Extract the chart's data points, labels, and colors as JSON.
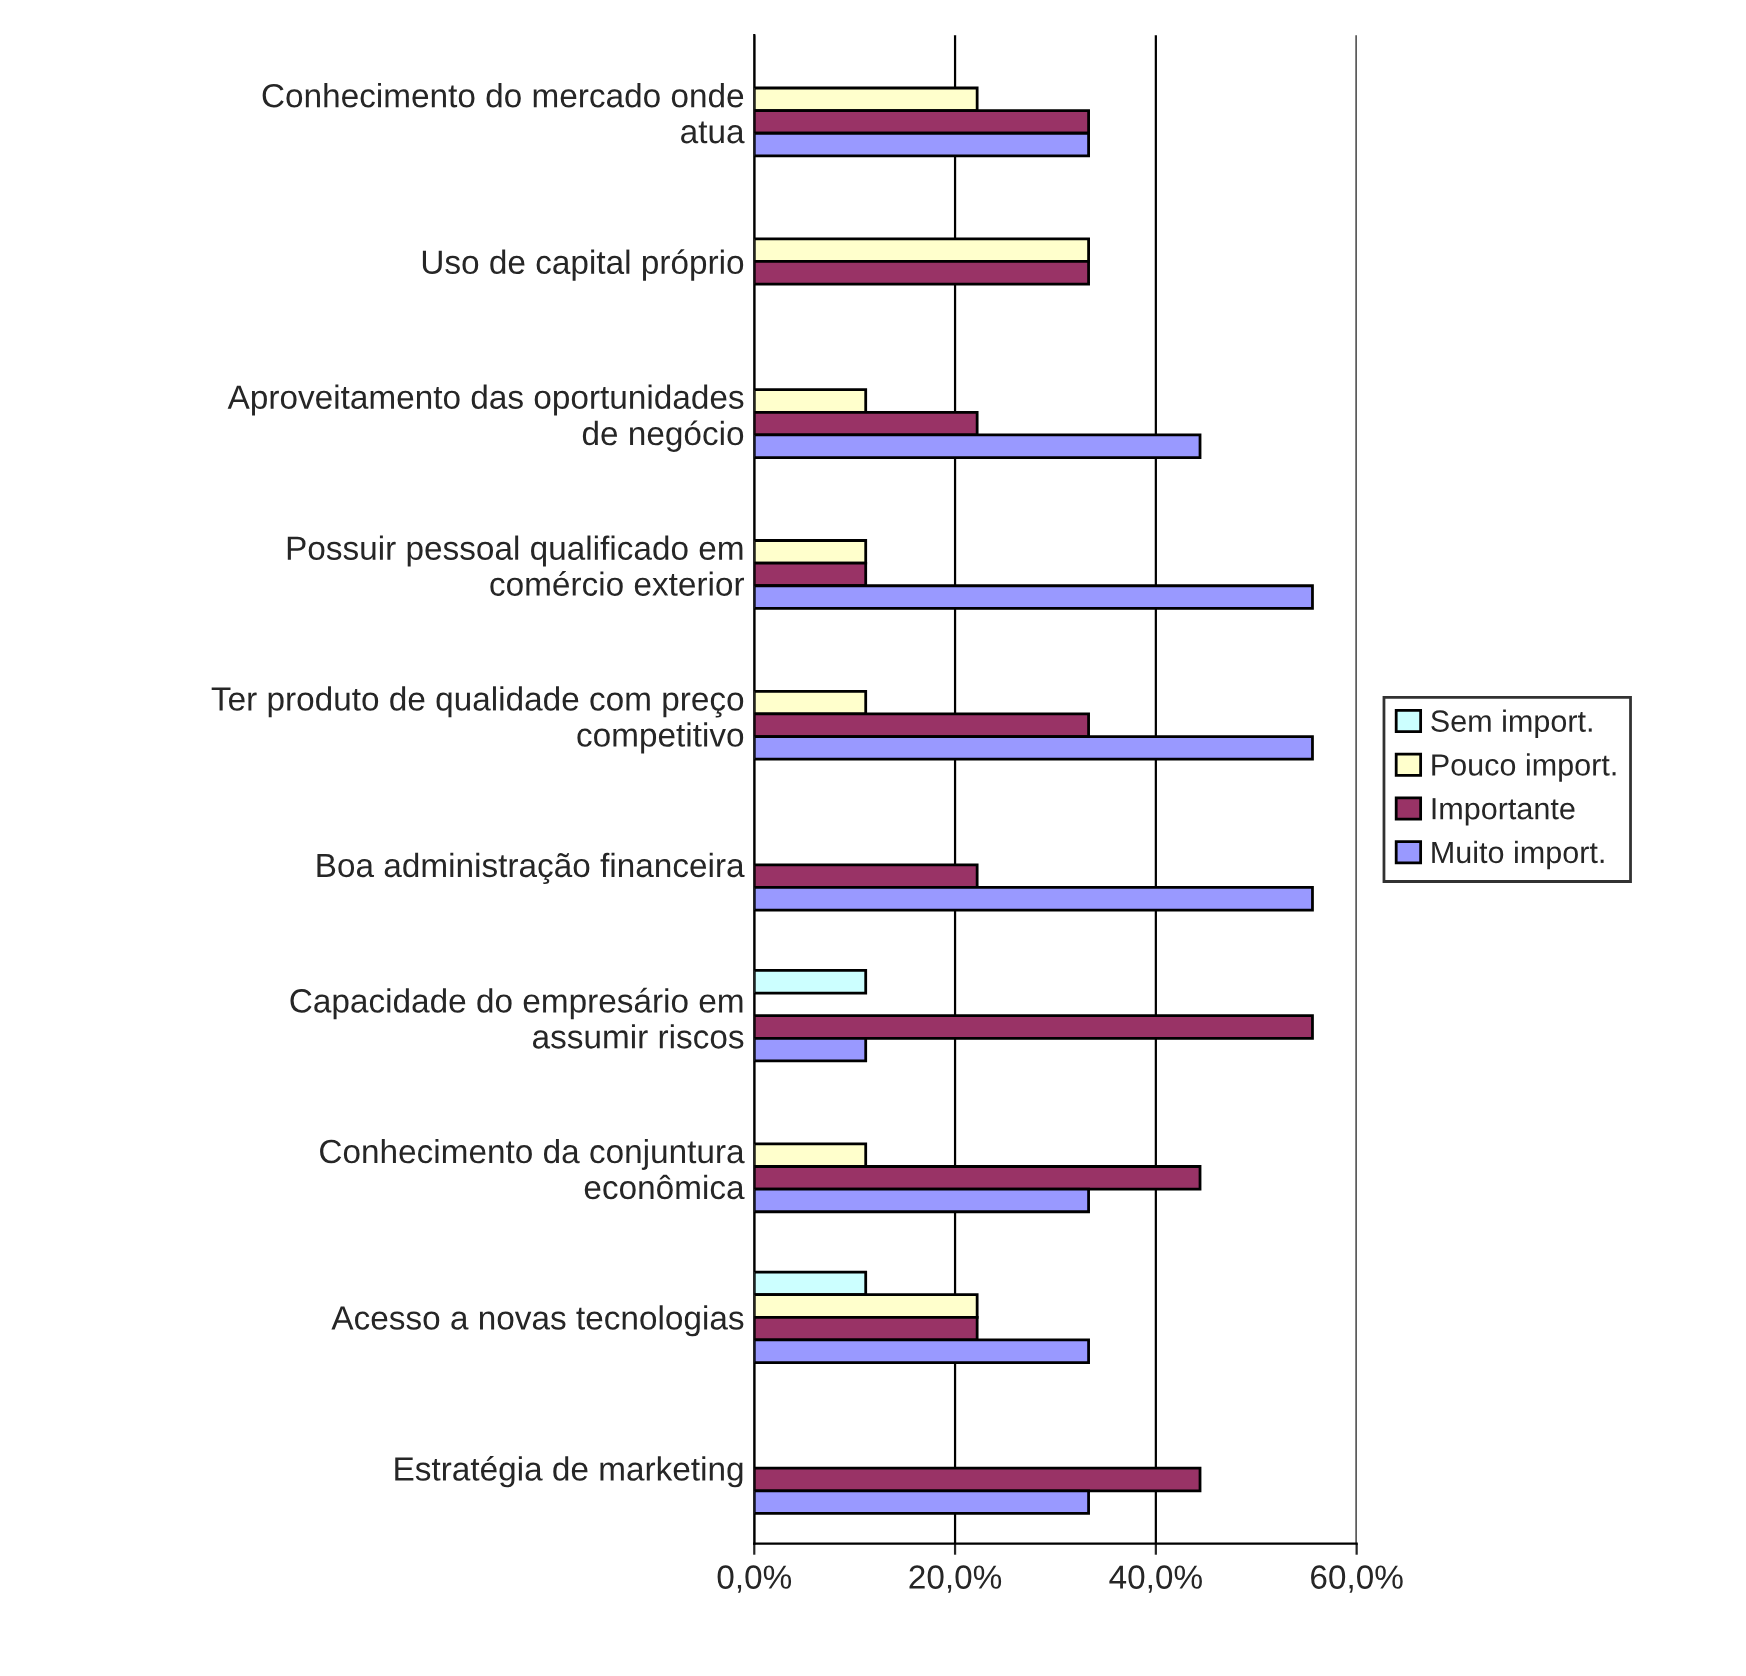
{
  "chart_data": {
    "type": "bar",
    "orientation": "horizontal",
    "categories": [
      "Conhecimento do mercado onde\natua",
      "Uso de capital próprio",
      "Aproveitamento das oportunidades\nde negócio",
      "Possuir pessoal qualificado em\ncomércio exterior",
      "Ter produto de qualidade com preço\ncompetitivo",
      "Boa administração financeira",
      "Capacidade do empresário em\nassumir riscos",
      "Conhecimento da conjuntura\neconômica",
      "Acesso a novas tecnologias",
      "Estratégia de marketing"
    ],
    "series": [
      {
        "name": "Sem import.",
        "color": "#ccffff",
        "values": [
          null,
          null,
          null,
          null,
          null,
          null,
          11.1,
          null,
          11.1,
          null
        ]
      },
      {
        "name": "Pouco import.",
        "color": "#ffffcc",
        "values": [
          22.2,
          33.3,
          11.1,
          11.1,
          11.1,
          null,
          null,
          11.1,
          22.2,
          null
        ]
      },
      {
        "name": "Importante",
        "color": "#993366",
        "values": [
          33.3,
          33.3,
          22.2,
          11.1,
          33.3,
          22.2,
          55.6,
          44.4,
          22.2,
          44.4
        ]
      },
      {
        "name": "Muito import.",
        "color": "#9999ff",
        "values": [
          33.3,
          null,
          44.4,
          55.6,
          55.6,
          55.6,
          11.1,
          33.3,
          33.3,
          33.3
        ]
      }
    ],
    "xlim": [
      0,
      60
    ],
    "xticks": [
      {
        "value": 0,
        "label": "0,0%"
      },
      {
        "value": 20,
        "label": "20,0%"
      },
      {
        "value": 40,
        "label": "40,0%"
      },
      {
        "value": 60,
        "label": "60,0%"
      }
    ],
    "grid": "x",
    "legend": "right"
  }
}
